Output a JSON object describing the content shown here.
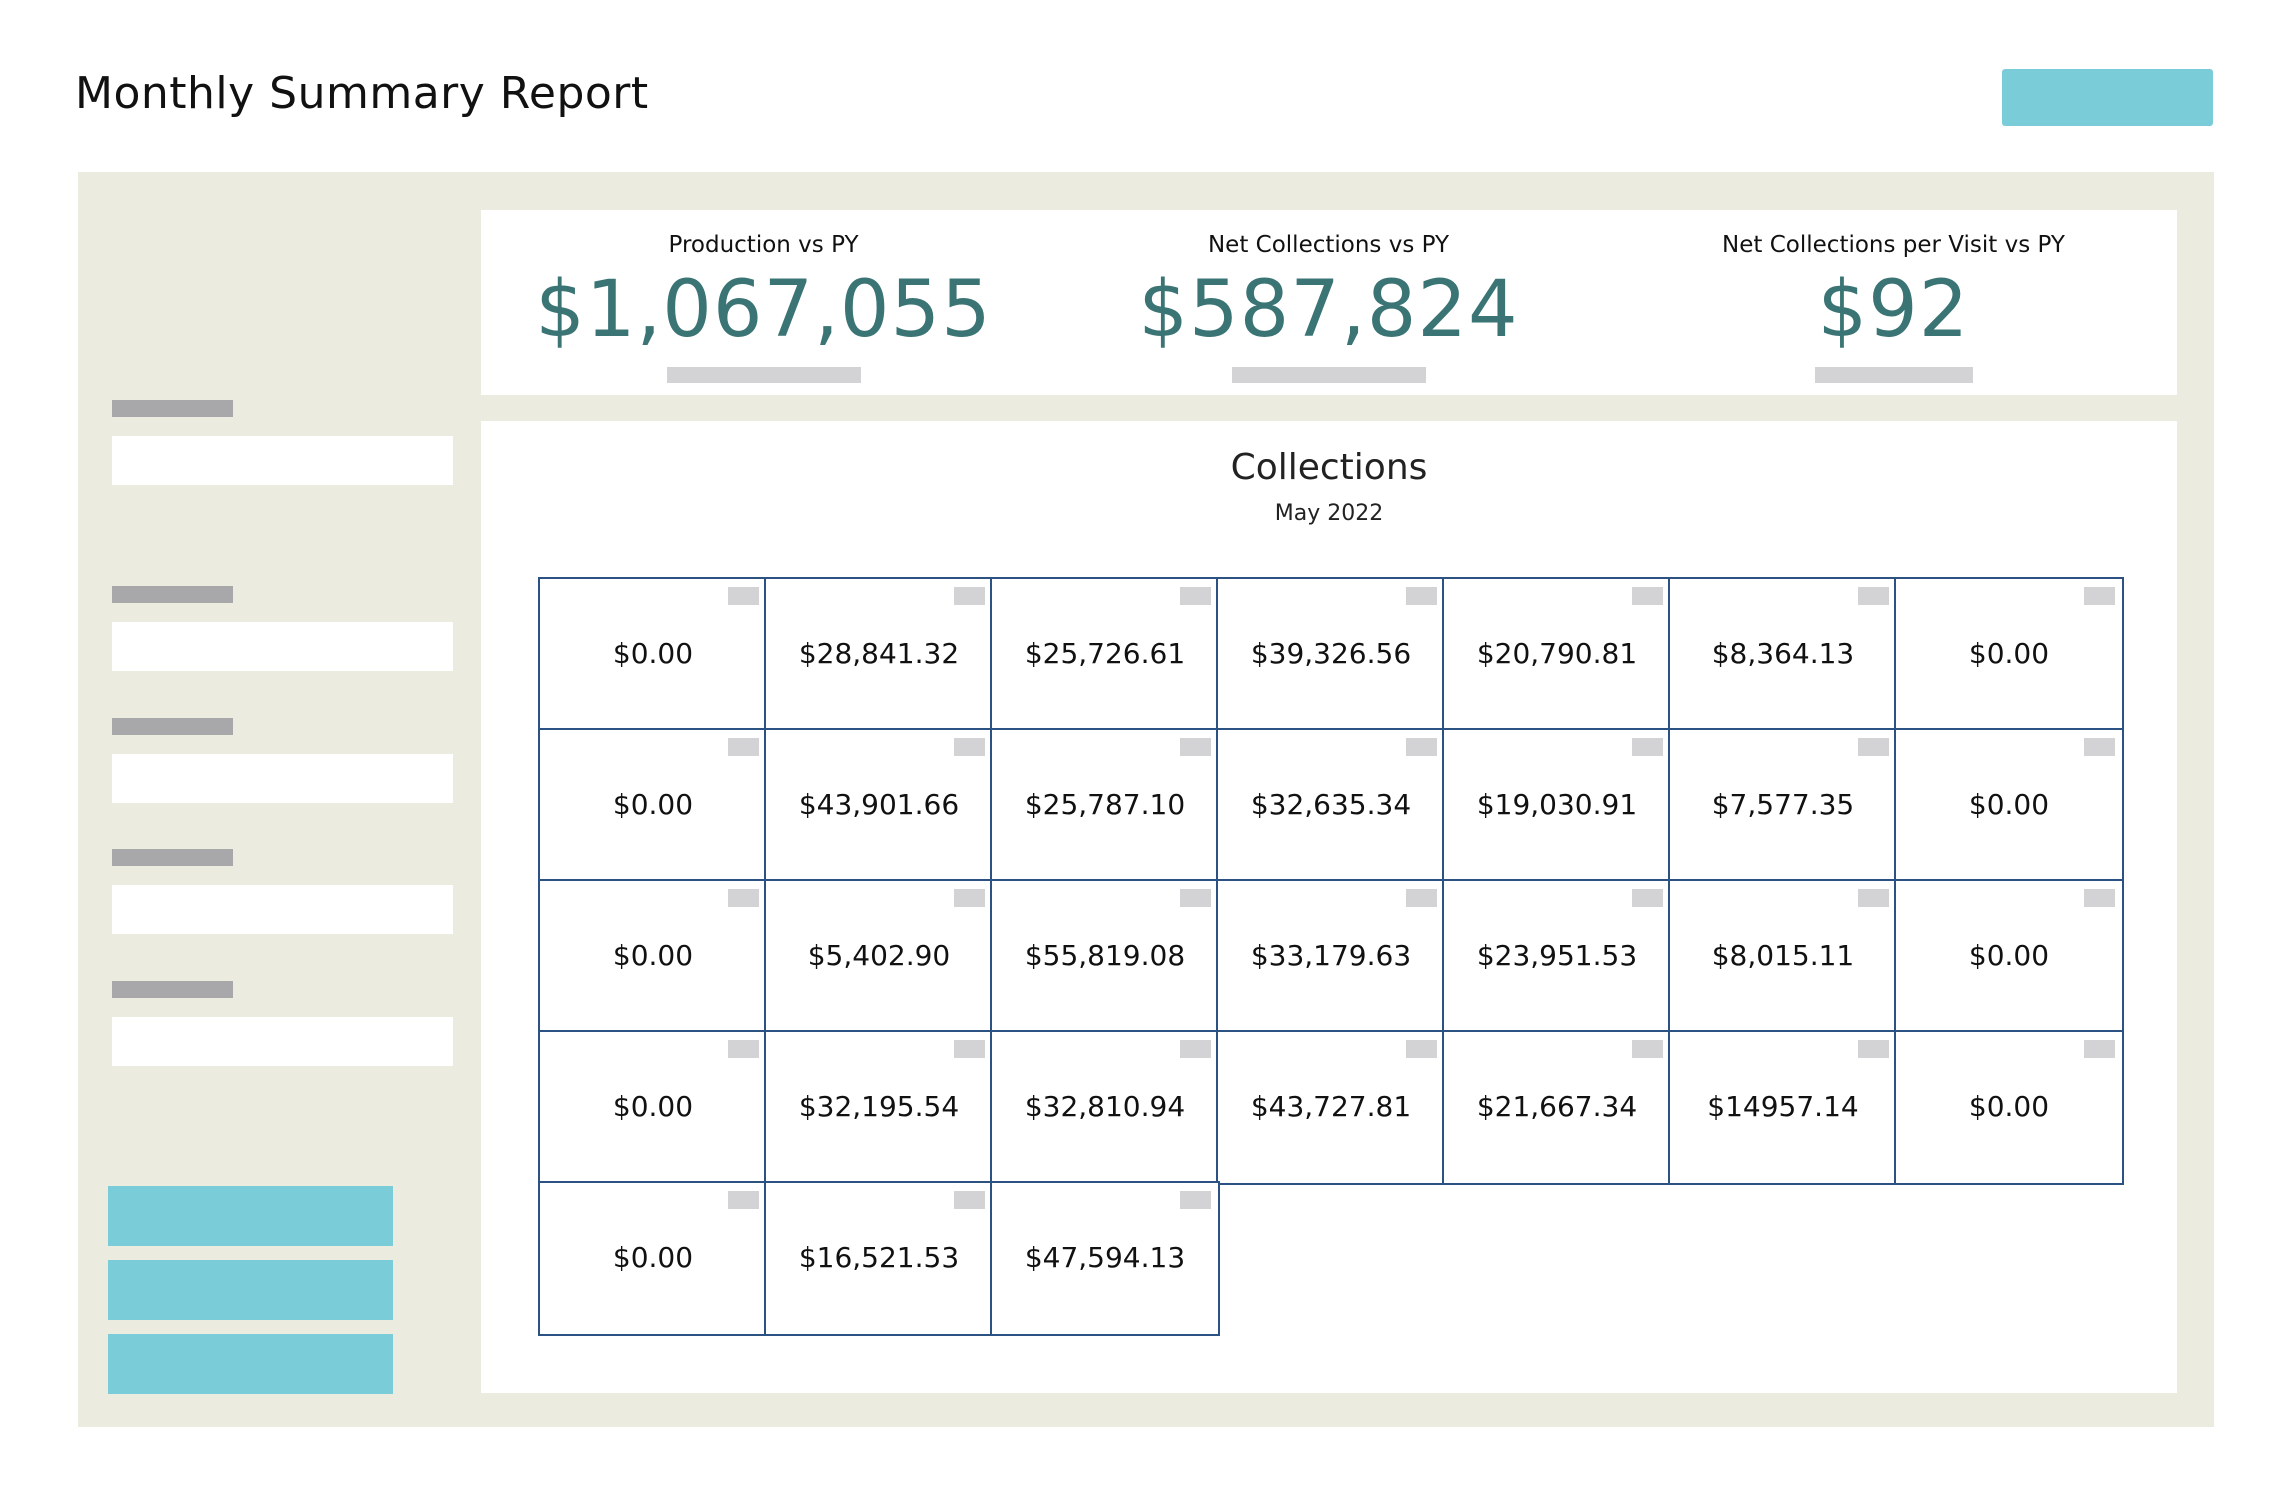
{
  "header": {
    "title": "Monthly Summary Report",
    "action_button_label": ""
  },
  "colors": {
    "accent": "#7bccd9",
    "panel_bg": "#ecebe0",
    "kpi_value": "#3b7474",
    "grid_border": "#2c5284",
    "placeholder": "#d3d3d5"
  },
  "kpis": [
    {
      "label": "Production vs PY",
      "value": "$1,067,055"
    },
    {
      "label": "Net Collections vs PY",
      "value": "$587,824"
    },
    {
      "label": "Net Collections per Visit vs PY",
      "value": "$92"
    }
  ],
  "collections": {
    "title": "Collections",
    "subtitle": "May 2022",
    "weeks": [
      [
        "$0.00",
        "$28,841.32",
        "$25,726.61",
        "$39,326.56",
        "$20,790.81",
        "$8,364.13",
        "$0.00"
      ],
      [
        "$0.00",
        "$43,901.66",
        "$25,787.10",
        "$32,635.34",
        "$19,030.91",
        "$7,577.35",
        "$0.00"
      ],
      [
        "$0.00",
        "$5,402.90",
        "$55,819.08",
        "$33,179.63",
        "$23,951.53",
        "$8,015.11",
        "$0.00"
      ],
      [
        "$0.00",
        "$32,195.54",
        "$32,810.94",
        "$43,727.81",
        "$21,667.34",
        "$14957.14",
        "$0.00"
      ],
      [
        "$0.00",
        "$16,521.53",
        "$47,594.13"
      ]
    ]
  }
}
